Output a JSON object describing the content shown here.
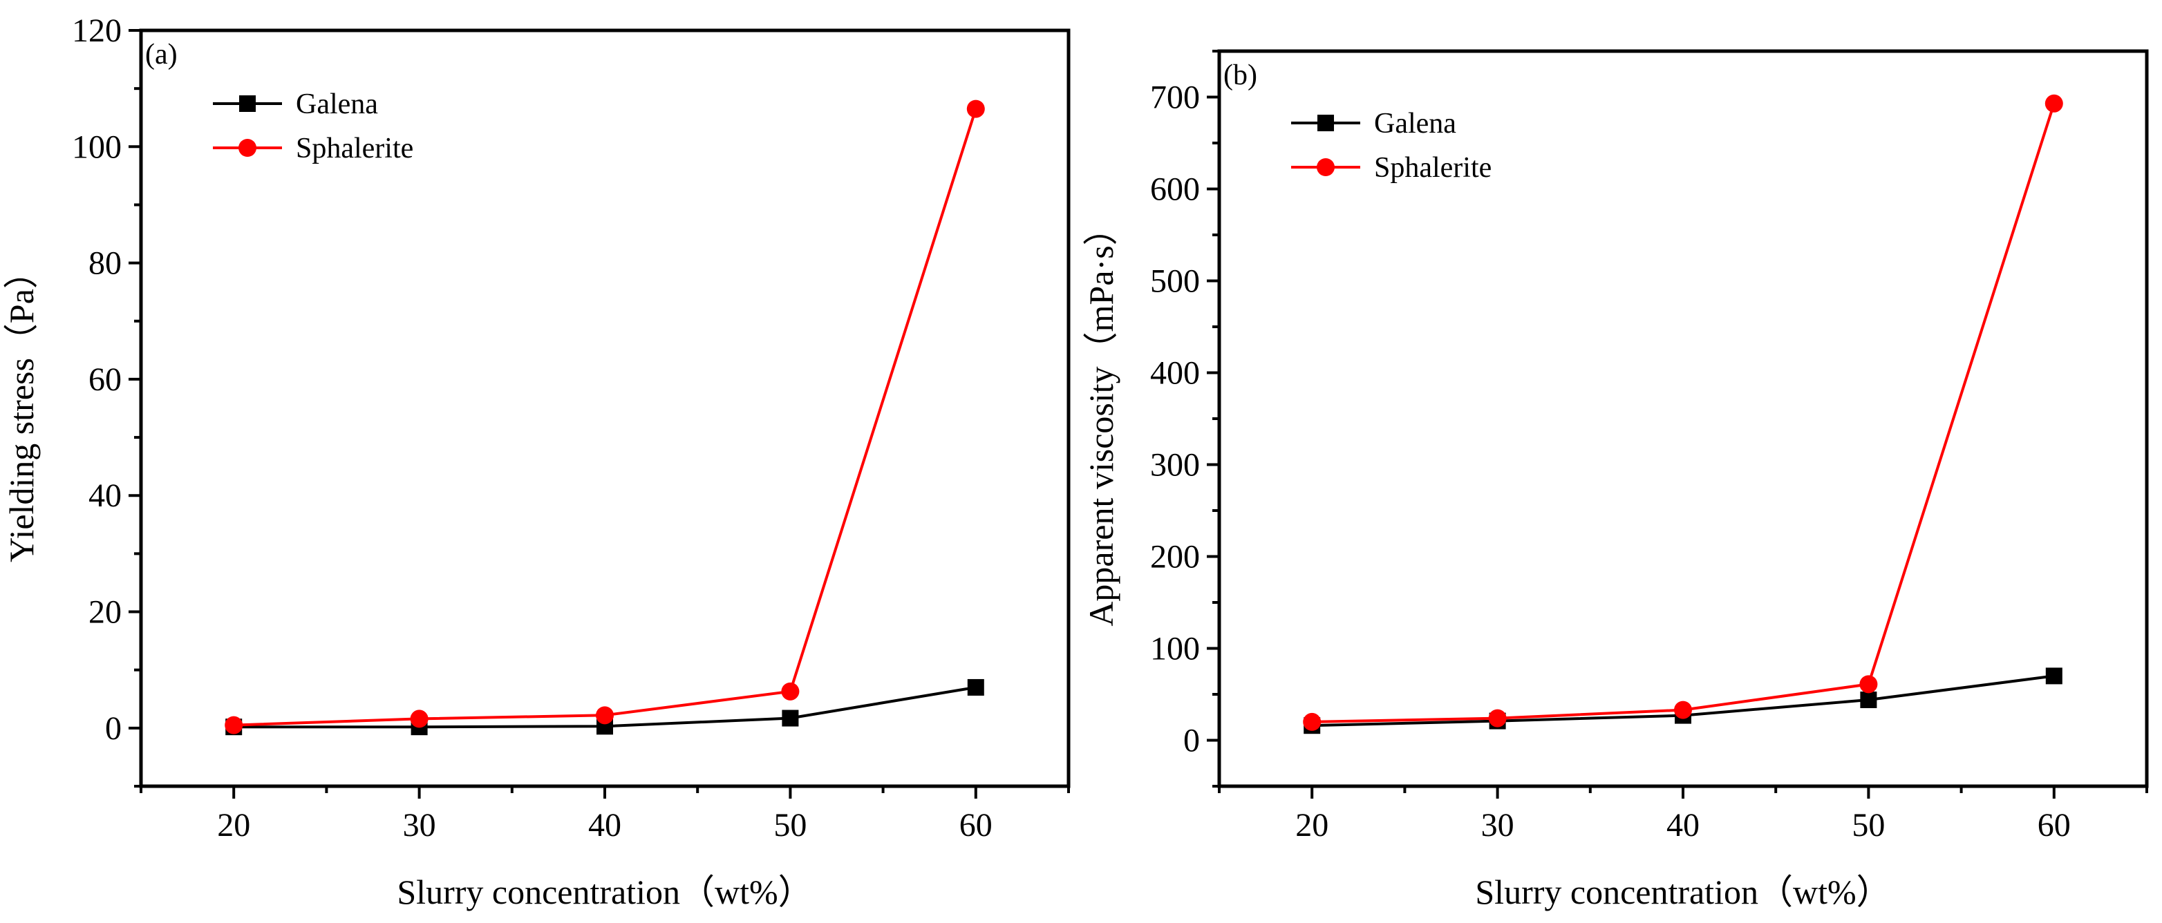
{
  "chart_data": [
    {
      "panel": "(a)",
      "type": "line",
      "title": "",
      "xlabel": "Slurry concentration（wt%）",
      "ylabel": "Yielding stress（Pa）",
      "x": [
        20,
        30,
        40,
        50,
        60
      ],
      "xticks": [
        20,
        30,
        40,
        50,
        60
      ],
      "xlim": [
        15,
        65
      ],
      "yticks": [
        0,
        20,
        40,
        60,
        80,
        100,
        120
      ],
      "ylim": [
        -10,
        120
      ],
      "grid": false,
      "legend_position": "top-left",
      "series": [
        {
          "name": "Galena",
          "color": "#000000",
          "marker": "square",
          "values": [
            0.2,
            0.2,
            0.3,
            1.7,
            7.0
          ]
        },
        {
          "name": "Sphalerite",
          "color": "#ff0000",
          "marker": "circle",
          "values": [
            0.5,
            1.6,
            2.2,
            6.3,
            106.5
          ]
        }
      ]
    },
    {
      "panel": "(b)",
      "type": "line",
      "title": "",
      "xlabel": "Slurry concentration（wt%）",
      "ylabel": "Apparent viscosity（mPa·s）",
      "x": [
        20,
        30,
        40,
        50,
        60
      ],
      "xticks": [
        20,
        30,
        40,
        50,
        60
      ],
      "xlim": [
        15,
        65
      ],
      "yticks": [
        0,
        100,
        200,
        300,
        400,
        500,
        600,
        700
      ],
      "ylim": [
        -50,
        750
      ],
      "grid": false,
      "legend_position": "top-left",
      "series": [
        {
          "name": "Galena",
          "color": "#000000",
          "marker": "square",
          "values": [
            16,
            21,
            27,
            44,
            70
          ]
        },
        {
          "name": "Sphalerite",
          "color": "#ff0000",
          "marker": "circle",
          "values": [
            20,
            24,
            33,
            61,
            693
          ]
        }
      ]
    }
  ]
}
